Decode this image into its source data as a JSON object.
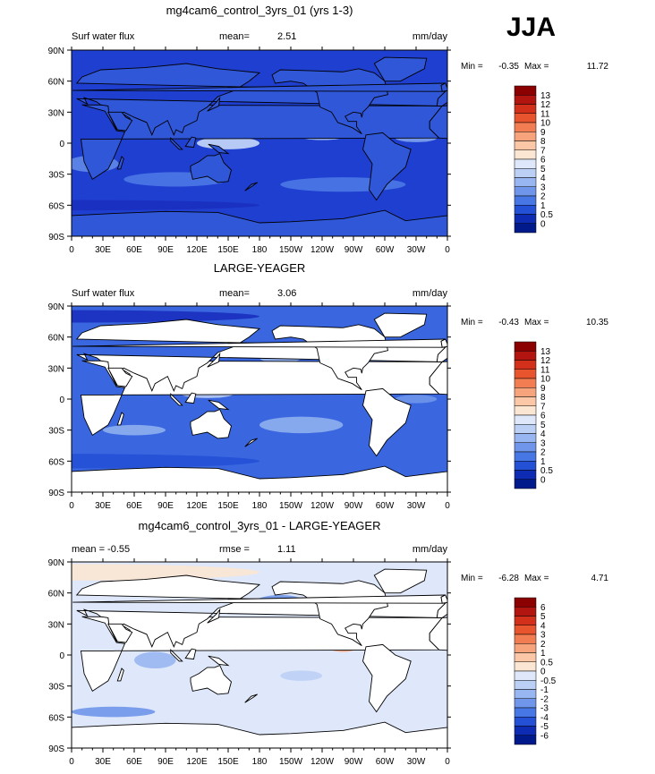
{
  "season": "JJA",
  "chart_data": [
    {
      "type": "heatmap",
      "title": "mg4cam6_control_3yrs_01 (yrs 1-3)",
      "subtitle_left": "Surf water flux",
      "stat1_label": "mean=",
      "stat1_value": "2.51",
      "units": "mm/day",
      "minmax": {
        "min_label": "Min =",
        "min": "-0.35",
        "max_label": "Max =",
        "max": "11.72"
      },
      "ocean_only": false,
      "land_fill": "#2f57d8",
      "ocean_fill": "#1f3fd0",
      "blobs": [
        {
          "cx": 150,
          "cy": 0,
          "rx": 30,
          "ry": 6,
          "c": "#c8d8f8"
        },
        {
          "cx": -120,
          "cy": 8,
          "rx": 25,
          "ry": 5,
          "c": "#a9c2f2"
        },
        {
          "cx": -30,
          "cy": 5,
          "rx": 20,
          "ry": 4,
          "c": "#7fa2ec"
        },
        {
          "cx": 20,
          "cy": -20,
          "rx": 25,
          "ry": 8,
          "c": "#5f88e8"
        },
        {
          "cx": 100,
          "cy": -35,
          "rx": 50,
          "ry": 7,
          "c": "#4b78e6"
        },
        {
          "cx": -100,
          "cy": -40,
          "rx": 60,
          "ry": 7,
          "c": "#4b78e6"
        },
        {
          "cx": 60,
          "cy": 10,
          "rx": 8,
          "ry": 3,
          "c": "#e2ecff"
        },
        {
          "cx": -150,
          "cy": 30,
          "rx": 25,
          "ry": 6,
          "c": "#4b78e6"
        },
        {
          "cx": 0,
          "cy": -60,
          "rx": 180,
          "ry": 5,
          "c": "#1a2fbe"
        }
      ],
      "colorbar": {
        "labels": [
          "13",
          "12",
          "11",
          "10",
          "9",
          "8",
          "7",
          "6",
          "5",
          "4",
          "3",
          "2",
          "1",
          "0.5",
          "0"
        ],
        "colors": [
          "#8b0000",
          "#b2150f",
          "#d2301a",
          "#e8542e",
          "#f27d52",
          "#f7a47c",
          "#fbc7a6",
          "#fbe5d3",
          "#dfe8fb",
          "#bcd0f6",
          "#98b6f1",
          "#6f96ea",
          "#4777e4",
          "#2450d6",
          "#0d2cb3",
          "#001a8c"
        ]
      },
      "x_ticks": [
        "0",
        "30E",
        "60E",
        "90E",
        "120E",
        "150E",
        "180",
        "150W",
        "120W",
        "90W",
        "60W",
        "30W",
        "0"
      ],
      "y_ticks": [
        "90N",
        "60N",
        "30N",
        "0",
        "30S",
        "60S",
        "90S"
      ]
    },
    {
      "type": "heatmap",
      "title": "LARGE-YEAGER",
      "subtitle_left": "Surf water flux",
      "stat1_label": "mean=",
      "stat1_value": "3.06",
      "units": "mm/day",
      "minmax": {
        "min_label": "Min =",
        "min": "-0.43",
        "max_label": "Max =",
        "max": "10.35"
      },
      "ocean_only": true,
      "land_fill": "#ffffff",
      "ocean_fill": "#3a67e0",
      "blobs": [
        {
          "cx": 130,
          "cy": 5,
          "rx": 25,
          "ry": 4,
          "c": "#b7cbf4"
        },
        {
          "cx": 60,
          "cy": -30,
          "rx": 30,
          "ry": 5,
          "c": "#8fb0f0"
        },
        {
          "cx": -140,
          "cy": -25,
          "rx": 40,
          "ry": 8,
          "c": "#8fb0f0"
        },
        {
          "cx": -30,
          "cy": 0,
          "rx": 20,
          "ry": 4,
          "c": "#6f96ea"
        },
        {
          "cx": -160,
          "cy": 40,
          "rx": 20,
          "ry": 5,
          "c": "#98b6f1"
        },
        {
          "cx": 0,
          "cy": -60,
          "rx": 180,
          "ry": 7,
          "c": "#2450d6"
        },
        {
          "cx": 0,
          "cy": 80,
          "rx": 180,
          "ry": 6,
          "c": "#1a2fbe"
        }
      ],
      "colorbar": {
        "labels": [
          "13",
          "12",
          "11",
          "10",
          "9",
          "8",
          "7",
          "6",
          "5",
          "4",
          "3",
          "2",
          "1",
          "0.5",
          "0"
        ],
        "colors": [
          "#8b0000",
          "#b2150f",
          "#d2301a",
          "#e8542e",
          "#f27d52",
          "#f7a47c",
          "#fbc7a6",
          "#fbe5d3",
          "#dfe8fb",
          "#bcd0f6",
          "#98b6f1",
          "#6f96ea",
          "#4777e4",
          "#2450d6",
          "#0d2cb3",
          "#001a8c"
        ]
      },
      "x_ticks": [
        "0",
        "30E",
        "60E",
        "90E",
        "120E",
        "150E",
        "180",
        "150W",
        "120W",
        "90W",
        "60W",
        "30W",
        "0"
      ],
      "y_ticks": [
        "90N",
        "60N",
        "30N",
        "0",
        "30S",
        "60S",
        "90S"
      ]
    },
    {
      "type": "heatmap",
      "title": "mg4cam6_control_3yrs_01 - LARGE-YEAGER",
      "subtitle_left": "mean =",
      "subtitle_left_value": "-0.55",
      "stat1_label": "rmse =",
      "stat1_value": "1.11",
      "units": "mm/day",
      "minmax": {
        "min_label": "Min =",
        "min": "-6.28",
        "max_label": "Max =",
        "max": "4.71"
      },
      "ocean_only": true,
      "land_fill": "#ffffff",
      "ocean_fill": "#dfe8fb",
      "blobs": [
        {
          "cx": -95,
          "cy": 12,
          "rx": 10,
          "ry": 4,
          "c": "#d2301a"
        },
        {
          "cx": -100,
          "cy": 10,
          "rx": 18,
          "ry": 7,
          "c": "#f7a47c"
        },
        {
          "cx": 80,
          "cy": -5,
          "rx": 20,
          "ry": 8,
          "c": "#98b6f1"
        },
        {
          "cx": 140,
          "cy": 10,
          "rx": 25,
          "ry": 6,
          "c": "#98b6f1"
        },
        {
          "cx": -140,
          "cy": -20,
          "rx": 20,
          "ry": 5,
          "c": "#bcd0f6"
        },
        {
          "cx": -30,
          "cy": 35,
          "rx": 20,
          "ry": 8,
          "c": "#98b6f1"
        },
        {
          "cx": 0,
          "cy": 80,
          "rx": 180,
          "ry": 8,
          "c": "#fbe5d3"
        },
        {
          "cx": -160,
          "cy": 50,
          "rx": 25,
          "ry": 8,
          "c": "#6f96ea"
        },
        {
          "cx": 40,
          "cy": -55,
          "rx": 40,
          "ry": 5,
          "c": "#6f96ea"
        }
      ],
      "colorbar": {
        "labels": [
          "6",
          "5",
          "4",
          "3",
          "2",
          "1",
          "0.5",
          "0",
          "-0.5",
          "-1",
          "-2",
          "-3",
          "-4",
          "-5",
          "-6"
        ],
        "colors": [
          "#8b0000",
          "#b2150f",
          "#d2301a",
          "#e8542e",
          "#f27d52",
          "#f7a47c",
          "#fbc7a6",
          "#fbe5d3",
          "#dfe8fb",
          "#bcd0f6",
          "#98b6f1",
          "#6f96ea",
          "#4777e4",
          "#2450d6",
          "#0d2cb3",
          "#001a8c"
        ]
      },
      "x_ticks": [
        "0",
        "30E",
        "60E",
        "90E",
        "120E",
        "150E",
        "180",
        "150W",
        "120W",
        "90W",
        "60W",
        "30W",
        "0"
      ],
      "y_ticks": [
        "90N",
        "60N",
        "30N",
        "0",
        "30S",
        "60S",
        "90S"
      ]
    }
  ]
}
